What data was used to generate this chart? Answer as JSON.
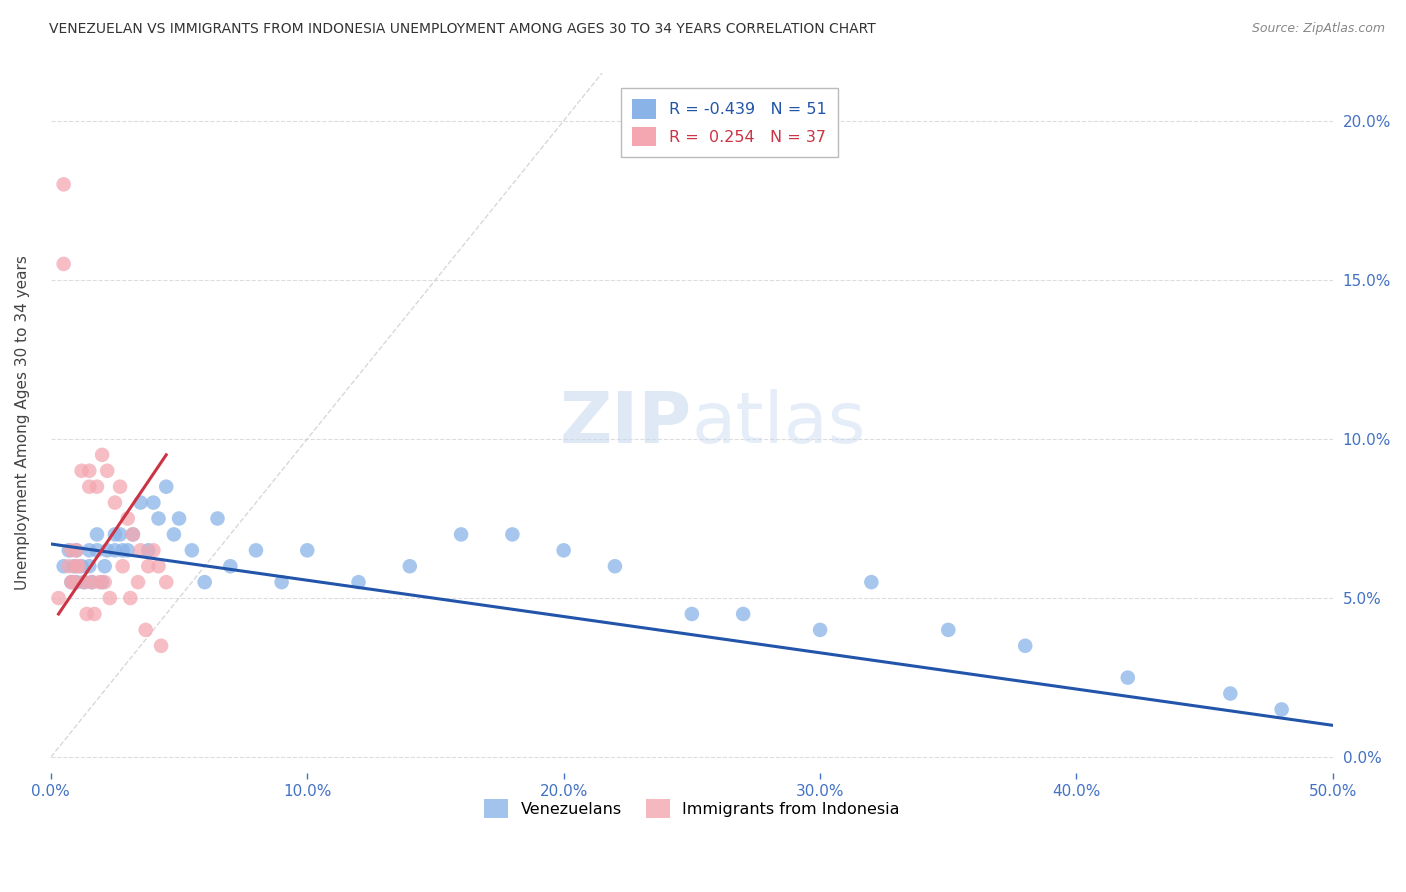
{
  "title": "VENEZUELAN VS IMMIGRANTS FROM INDONESIA UNEMPLOYMENT AMONG AGES 30 TO 34 YEARS CORRELATION CHART",
  "source": "Source: ZipAtlas.com",
  "ylabel": "Unemployment Among Ages 30 to 34 years",
  "xlim": [
    0.0,
    0.5
  ],
  "ylim": [
    -0.005,
    0.215
  ],
  "xtick_labels": [
    "0.0%",
    "10.0%",
    "20.0%",
    "30.0%",
    "40.0%",
    "50.0%"
  ],
  "xtick_values": [
    0.0,
    0.1,
    0.2,
    0.3,
    0.4,
    0.5
  ],
  "ytick_labels_right": [
    "20.0%",
    "15.0%",
    "10.0%",
    "5.0%",
    "0.0%"
  ],
  "ytick_values": [
    0.2,
    0.15,
    0.1,
    0.05,
    0.0
  ],
  "blue_color": "#8AB4E8",
  "pink_color": "#F4A7B0",
  "blue_line_color": "#2255AA",
  "pink_line_color": "#CC3344",
  "blue_R": -0.439,
  "blue_N": 51,
  "pink_R": 0.254,
  "pink_N": 37,
  "legend_label_blue": "Venezuelans",
  "legend_label_pink": "Immigrants from Indonesia",
  "watermark_zip": "ZIP",
  "watermark_atlas": "atlas",
  "blue_scatter_x": [
    0.005,
    0.007,
    0.008,
    0.009,
    0.01,
    0.01,
    0.012,
    0.013,
    0.015,
    0.015,
    0.016,
    0.018,
    0.018,
    0.02,
    0.021,
    0.022,
    0.025,
    0.025,
    0.027,
    0.028,
    0.03,
    0.032,
    0.035,
    0.038,
    0.04,
    0.042,
    0.045,
    0.048,
    0.05,
    0.055,
    0.06,
    0.065,
    0.07,
    0.08,
    0.09,
    0.1,
    0.12,
    0.14,
    0.16,
    0.18,
    0.2,
    0.22,
    0.25,
    0.27,
    0.3,
    0.32,
    0.35,
    0.38,
    0.42,
    0.46,
    0.48
  ],
  "blue_scatter_y": [
    0.06,
    0.065,
    0.055,
    0.06,
    0.065,
    0.055,
    0.06,
    0.055,
    0.06,
    0.065,
    0.055,
    0.07,
    0.065,
    0.055,
    0.06,
    0.065,
    0.07,
    0.065,
    0.07,
    0.065,
    0.065,
    0.07,
    0.08,
    0.065,
    0.08,
    0.075,
    0.085,
    0.07,
    0.075,
    0.065,
    0.055,
    0.075,
    0.06,
    0.065,
    0.055,
    0.065,
    0.055,
    0.06,
    0.07,
    0.07,
    0.065,
    0.06,
    0.045,
    0.045,
    0.04,
    0.055,
    0.04,
    0.035,
    0.025,
    0.02,
    0.015
  ],
  "pink_scatter_x": [
    0.003,
    0.005,
    0.005,
    0.007,
    0.008,
    0.008,
    0.009,
    0.01,
    0.01,
    0.011,
    0.012,
    0.013,
    0.014,
    0.015,
    0.015,
    0.016,
    0.017,
    0.018,
    0.019,
    0.02,
    0.021,
    0.022,
    0.023,
    0.025,
    0.027,
    0.028,
    0.03,
    0.031,
    0.032,
    0.034,
    0.035,
    0.037,
    0.038,
    0.04,
    0.042,
    0.043,
    0.045
  ],
  "pink_scatter_y": [
    0.05,
    0.18,
    0.155,
    0.06,
    0.055,
    0.065,
    0.055,
    0.06,
    0.065,
    0.06,
    0.09,
    0.055,
    0.045,
    0.09,
    0.085,
    0.055,
    0.045,
    0.085,
    0.055,
    0.095,
    0.055,
    0.09,
    0.05,
    0.08,
    0.085,
    0.06,
    0.075,
    0.05,
    0.07,
    0.055,
    0.065,
    0.04,
    0.06,
    0.065,
    0.06,
    0.035,
    0.055
  ],
  "blue_trend_x": [
    0.0,
    0.5
  ],
  "blue_trend_y": [
    0.067,
    0.01
  ],
  "pink_trend_x": [
    0.003,
    0.045
  ],
  "pink_trend_y": [
    0.045,
    0.095
  ],
  "diag_line_x": [
    0.0,
    0.215
  ],
  "diag_line_y": [
    0.0,
    0.215
  ],
  "background_color": "#FFFFFF",
  "grid_color": "#DDDDDD",
  "title_color": "#333333",
  "axis_color": "#4472C4"
}
